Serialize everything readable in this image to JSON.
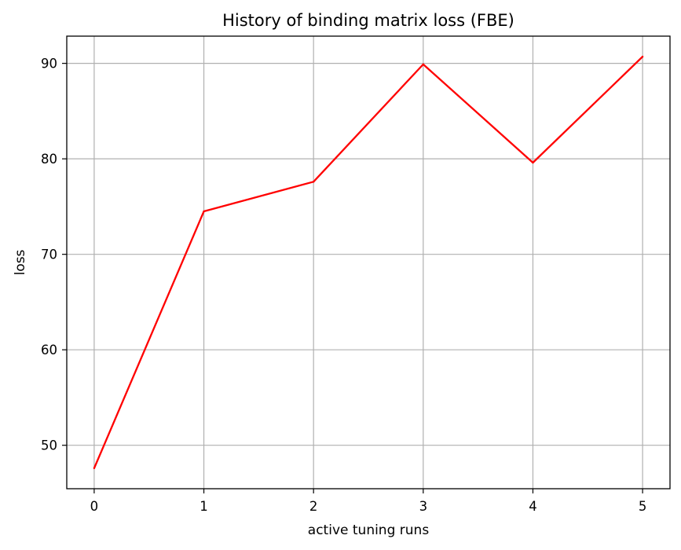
{
  "chart_data": {
    "type": "line",
    "title": "History of binding matrix loss (FBE)",
    "xlabel": "active tuning runs",
    "ylabel": "loss",
    "x": [
      0,
      1,
      2,
      3,
      4,
      5
    ],
    "series": [
      {
        "values": [
          47.6,
          74.5,
          77.6,
          89.9,
          79.6,
          90.7
        ],
        "color": "#ff0000"
      }
    ],
    "xticks": [
      0,
      1,
      2,
      3,
      4,
      5
    ],
    "yticks": [
      50,
      60,
      70,
      80,
      90
    ],
    "xlim": [
      -0.25,
      5.25
    ],
    "ylim": [
      45.45,
      92.85
    ],
    "grid": true
  }
}
